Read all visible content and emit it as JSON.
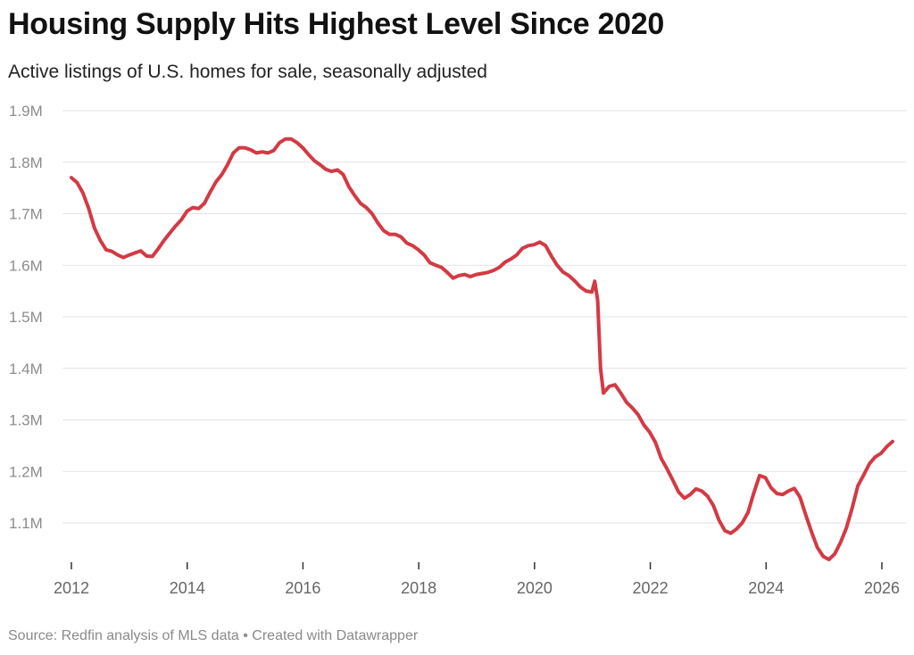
{
  "header": {
    "title": "Housing Supply Hits Highest Level Since 2020",
    "subtitle": "Active listings of U.S. homes for sale, seasonally adjusted"
  },
  "footer": {
    "source": "Source: Redfin analysis of MLS data • Created with Datawrapper"
  },
  "colors": {
    "line": "#d33a44",
    "grid": "#e3e3e3",
    "axis": "#333333"
  },
  "chart_data": {
    "type": "line",
    "title": "Housing Supply Hits Highest Level Since 2020",
    "subtitle": "Active listings of U.S. homes for sale, seasonally adjusted",
    "xlabel": "",
    "ylabel": "",
    "xlim": [
      2012,
      2026.4
    ],
    "ylim": [
      1.03,
      1.9
    ],
    "y_unit": "million listings",
    "y_ticks": [
      1.1,
      1.2,
      1.3,
      1.4,
      1.5,
      1.6,
      1.7,
      1.8,
      1.9
    ],
    "y_tick_labels": [
      "1.1M",
      "1.2M",
      "1.3M",
      "1.4M",
      "1.5M",
      "1.6M",
      "1.7M",
      "1.8M",
      "1.9M"
    ],
    "x_ticks": [
      2012,
      2014,
      2016,
      2018,
      2020,
      2022,
      2024,
      2026
    ],
    "x_tick_labels": [
      "2012",
      "2014",
      "2016",
      "2018",
      "2020",
      "2022",
      "2024",
      "2026"
    ],
    "grid": true,
    "legend": "none",
    "series": [
      {
        "color": "#d33a44",
        "points": [
          [
            2012.0,
            1.77
          ],
          [
            2012.1,
            1.76
          ],
          [
            2012.2,
            1.74
          ],
          [
            2012.3,
            1.71
          ],
          [
            2012.4,
            1.672
          ],
          [
            2012.5,
            1.648
          ],
          [
            2012.6,
            1.63
          ],
          [
            2012.7,
            1.627
          ],
          [
            2012.8,
            1.62
          ],
          [
            2012.9,
            1.615
          ],
          [
            2013.0,
            1.62
          ],
          [
            2013.1,
            1.624
          ],
          [
            2013.2,
            1.628
          ],
          [
            2013.3,
            1.618
          ],
          [
            2013.4,
            1.617
          ],
          [
            2013.5,
            1.632
          ],
          [
            2013.6,
            1.648
          ],
          [
            2013.7,
            1.662
          ],
          [
            2013.8,
            1.676
          ],
          [
            2013.9,
            1.688
          ],
          [
            2014.0,
            1.705
          ],
          [
            2014.1,
            1.712
          ],
          [
            2014.2,
            1.71
          ],
          [
            2014.3,
            1.72
          ],
          [
            2014.4,
            1.742
          ],
          [
            2014.5,
            1.762
          ],
          [
            2014.6,
            1.776
          ],
          [
            2014.7,
            1.795
          ],
          [
            2014.8,
            1.818
          ],
          [
            2014.9,
            1.828
          ],
          [
            2015.0,
            1.828
          ],
          [
            2015.1,
            1.824
          ],
          [
            2015.2,
            1.818
          ],
          [
            2015.3,
            1.82
          ],
          [
            2015.4,
            1.818
          ],
          [
            2015.5,
            1.823
          ],
          [
            2015.6,
            1.838
          ],
          [
            2015.7,
            1.845
          ],
          [
            2015.8,
            1.845
          ],
          [
            2015.9,
            1.838
          ],
          [
            2016.0,
            1.828
          ],
          [
            2016.1,
            1.815
          ],
          [
            2016.2,
            1.803
          ],
          [
            2016.3,
            1.795
          ],
          [
            2016.4,
            1.786
          ],
          [
            2016.5,
            1.782
          ],
          [
            2016.6,
            1.785
          ],
          [
            2016.7,
            1.776
          ],
          [
            2016.8,
            1.752
          ],
          [
            2016.9,
            1.735
          ],
          [
            2017.0,
            1.72
          ],
          [
            2017.1,
            1.712
          ],
          [
            2017.2,
            1.7
          ],
          [
            2017.3,
            1.682
          ],
          [
            2017.4,
            1.667
          ],
          [
            2017.5,
            1.66
          ],
          [
            2017.6,
            1.66
          ],
          [
            2017.7,
            1.655
          ],
          [
            2017.8,
            1.643
          ],
          [
            2017.9,
            1.638
          ],
          [
            2018.0,
            1.63
          ],
          [
            2018.1,
            1.62
          ],
          [
            2018.2,
            1.605
          ],
          [
            2018.3,
            1.6
          ],
          [
            2018.4,
            1.596
          ],
          [
            2018.5,
            1.586
          ],
          [
            2018.6,
            1.575
          ],
          [
            2018.7,
            1.58
          ],
          [
            2018.8,
            1.582
          ],
          [
            2018.9,
            1.578
          ],
          [
            2019.0,
            1.582
          ],
          [
            2019.1,
            1.584
          ],
          [
            2019.2,
            1.586
          ],
          [
            2019.3,
            1.59
          ],
          [
            2019.4,
            1.596
          ],
          [
            2019.5,
            1.606
          ],
          [
            2019.6,
            1.612
          ],
          [
            2019.7,
            1.62
          ],
          [
            2019.8,
            1.633
          ],
          [
            2019.9,
            1.638
          ],
          [
            2020.0,
            1.64
          ],
          [
            2020.1,
            1.645
          ],
          [
            2020.2,
            1.638
          ],
          [
            2020.3,
            1.618
          ],
          [
            2020.4,
            1.6
          ],
          [
            2020.5,
            1.587
          ],
          [
            2020.6,
            1.58
          ],
          [
            2020.7,
            1.57
          ],
          [
            2020.8,
            1.558
          ],
          [
            2020.9,
            1.55
          ],
          [
            2021.0,
            1.548
          ],
          [
            2021.05,
            1.569
          ],
          [
            2021.1,
            1.532
          ],
          [
            2021.15,
            1.4
          ],
          [
            2021.2,
            1.352
          ],
          [
            2021.3,
            1.365
          ],
          [
            2021.4,
            1.368
          ],
          [
            2021.5,
            1.352
          ],
          [
            2021.6,
            1.334
          ],
          [
            2021.7,
            1.323
          ],
          [
            2021.8,
            1.31
          ],
          [
            2021.9,
            1.29
          ],
          [
            2022.0,
            1.276
          ],
          [
            2022.1,
            1.256
          ],
          [
            2022.2,
            1.225
          ],
          [
            2022.3,
            1.205
          ],
          [
            2022.4,
            1.183
          ],
          [
            2022.5,
            1.16
          ],
          [
            2022.6,
            1.148
          ],
          [
            2022.7,
            1.155
          ],
          [
            2022.8,
            1.166
          ],
          [
            2022.9,
            1.162
          ],
          [
            2023.0,
            1.152
          ],
          [
            2023.1,
            1.134
          ],
          [
            2023.2,
            1.105
          ],
          [
            2023.3,
            1.085
          ],
          [
            2023.4,
            1.08
          ],
          [
            2023.5,
            1.088
          ],
          [
            2023.6,
            1.1
          ],
          [
            2023.7,
            1.12
          ],
          [
            2023.8,
            1.158
          ],
          [
            2023.9,
            1.192
          ],
          [
            2024.0,
            1.188
          ],
          [
            2024.1,
            1.168
          ],
          [
            2024.2,
            1.157
          ],
          [
            2024.3,
            1.155
          ],
          [
            2024.4,
            1.162
          ],
          [
            2024.5,
            1.167
          ],
          [
            2024.6,
            1.15
          ],
          [
            2024.7,
            1.115
          ],
          [
            2024.8,
            1.082
          ],
          [
            2024.9,
            1.052
          ],
          [
            2025.0,
            1.035
          ],
          [
            2025.1,
            1.029
          ],
          [
            2025.2,
            1.04
          ],
          [
            2025.3,
            1.062
          ],
          [
            2025.4,
            1.09
          ],
          [
            2025.5,
            1.128
          ],
          [
            2025.6,
            1.172
          ],
          [
            2025.7,
            1.193
          ],
          [
            2025.8,
            1.215
          ],
          [
            2025.9,
            1.228
          ],
          [
            2026.0,
            1.235
          ],
          [
            2026.1,
            1.248
          ],
          [
            2026.2,
            1.258
          ]
        ]
      }
    ]
  }
}
